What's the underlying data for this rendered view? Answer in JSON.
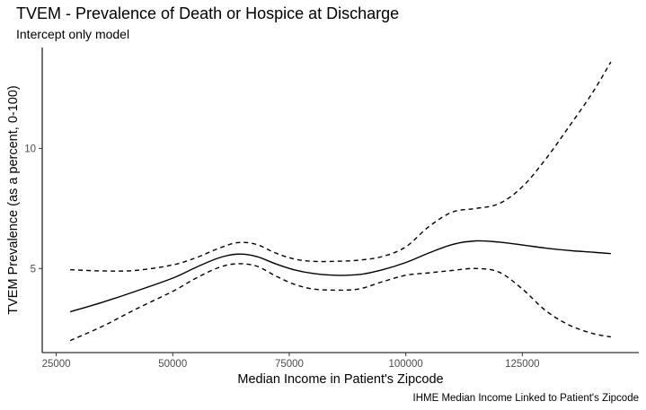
{
  "chart_data": {
    "type": "line",
    "title": "TVEM - Prevalence of Death or Hospice at Discharge",
    "subtitle": "Intercept only model",
    "caption": "IHME Median Income Linked to Patient's Zipcode",
    "xlabel": "Median Income in Patient's Zipcode",
    "ylabel": "TVEM Prevalence (as a percent, 0-100)",
    "xlim": [
      22000,
      150000
    ],
    "ylim": [
      1.5,
      14.2
    ],
    "x_ticks": [
      25000,
      50000,
      75000,
      100000,
      125000
    ],
    "y_ticks": [
      5,
      10
    ],
    "grid": false,
    "series": [
      {
        "line_style": "solid",
        "points": [
          [
            28000,
            3.2
          ],
          [
            35000,
            3.6
          ],
          [
            42000,
            4.05
          ],
          [
            50000,
            4.6
          ],
          [
            55000,
            5.05
          ],
          [
            60000,
            5.45
          ],
          [
            64000,
            5.6
          ],
          [
            68000,
            5.5
          ],
          [
            72000,
            5.2
          ],
          [
            76000,
            4.95
          ],
          [
            80000,
            4.8
          ],
          [
            85000,
            4.72
          ],
          [
            90000,
            4.75
          ],
          [
            95000,
            4.95
          ],
          [
            100000,
            5.25
          ],
          [
            105000,
            5.65
          ],
          [
            110000,
            6.0
          ],
          [
            115000,
            6.15
          ],
          [
            120000,
            6.1
          ],
          [
            125000,
            5.98
          ],
          [
            130000,
            5.85
          ],
          [
            135000,
            5.75
          ],
          [
            140000,
            5.68
          ],
          [
            144000,
            5.62
          ]
        ]
      },
      {
        "line_style": "dashed",
        "points": [
          [
            28000,
            4.95
          ],
          [
            35000,
            4.9
          ],
          [
            42000,
            4.92
          ],
          [
            50000,
            5.15
          ],
          [
            55000,
            5.45
          ],
          [
            60000,
            5.85
          ],
          [
            64000,
            6.08
          ],
          [
            68000,
            6.0
          ],
          [
            72000,
            5.65
          ],
          [
            76000,
            5.4
          ],
          [
            80000,
            5.3
          ],
          [
            85000,
            5.3
          ],
          [
            90000,
            5.35
          ],
          [
            95000,
            5.5
          ],
          [
            100000,
            5.9
          ],
          [
            105000,
            6.75
          ],
          [
            110000,
            7.35
          ],
          [
            115000,
            7.5
          ],
          [
            120000,
            7.7
          ],
          [
            125000,
            8.4
          ],
          [
            130000,
            9.55
          ],
          [
            135000,
            10.9
          ],
          [
            140000,
            12.3
          ],
          [
            144000,
            13.6
          ]
        ]
      },
      {
        "line_style": "dashed",
        "points": [
          [
            28000,
            2.0
          ],
          [
            35000,
            2.6
          ],
          [
            42000,
            3.3
          ],
          [
            50000,
            4.05
          ],
          [
            55000,
            4.6
          ],
          [
            60000,
            5.05
          ],
          [
            64000,
            5.2
          ],
          [
            68000,
            5.1
          ],
          [
            72000,
            4.7
          ],
          [
            76000,
            4.35
          ],
          [
            80000,
            4.15
          ],
          [
            85000,
            4.1
          ],
          [
            90000,
            4.15
          ],
          [
            95000,
            4.45
          ],
          [
            100000,
            4.72
          ],
          [
            105000,
            4.82
          ],
          [
            110000,
            4.92
          ],
          [
            115000,
            5.0
          ],
          [
            120000,
            4.85
          ],
          [
            125000,
            4.15
          ],
          [
            130000,
            3.25
          ],
          [
            135000,
            2.65
          ],
          [
            140000,
            2.3
          ],
          [
            144000,
            2.15
          ]
        ]
      }
    ]
  }
}
